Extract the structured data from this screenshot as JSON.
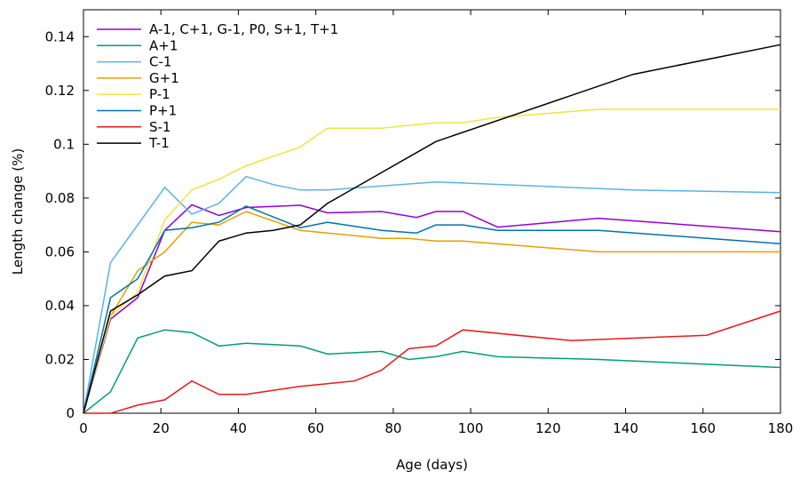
{
  "chart_data": {
    "type": "line",
    "xlabel": "Age (days)",
    "ylabel": "Length change (%)",
    "xlim": [
      0,
      180
    ],
    "ylim": [
      0,
      0.15
    ],
    "xticks": [
      0,
      20,
      40,
      60,
      80,
      100,
      120,
      140,
      160,
      180
    ],
    "yticks": [
      0,
      0.02,
      0.04,
      0.06,
      0.08,
      0.1,
      0.12,
      0.14
    ],
    "ytick_labels": [
      "0",
      "0.02",
      "0.04",
      "0.06",
      "0.08",
      "0.1",
      "0.12",
      "0.14"
    ],
    "grid": false,
    "legend_position": "top-left",
    "series": [
      {
        "name": "A-1, C+1, G-1, P0, S+1, T+1",
        "color": "#9400d3",
        "x": [
          0,
          7,
          14,
          21,
          28,
          35,
          42,
          56,
          63,
          77,
          86,
          91,
          98,
          107,
          133,
          180
        ],
        "y": [
          0,
          0.035,
          0.043,
          0.068,
          0.0775,
          0.0735,
          0.0765,
          0.0773,
          0.0745,
          0.075,
          0.0728,
          0.075,
          0.075,
          0.0692,
          0.0725,
          0.0675
        ]
      },
      {
        "name": "A+1",
        "color": "#009e73",
        "x": [
          0,
          7,
          14,
          21,
          28,
          35,
          42,
          56,
          63,
          77,
          84,
          91,
          98,
          107,
          133,
          180
        ],
        "y": [
          0,
          0.008,
          0.028,
          0.031,
          0.03,
          0.025,
          0.026,
          0.025,
          0.022,
          0.023,
          0.02,
          0.021,
          0.023,
          0.021,
          0.02,
          0.017
        ]
      },
      {
        "name": "C-1",
        "color": "#56b4e9",
        "x": [
          0,
          7,
          21,
          28,
          35,
          42,
          49,
          56,
          63,
          91,
          142,
          180
        ],
        "y": [
          0,
          0.056,
          0.084,
          0.074,
          0.078,
          0.088,
          0.085,
          0.083,
          0.083,
          0.086,
          0.083,
          0.082
        ],
        "note_x_include": true
      },
      {
        "name": "G+1",
        "color": "#e69f00",
        "x": [
          0,
          7,
          14,
          21,
          28,
          35,
          42,
          56,
          63,
          77,
          84,
          91,
          98,
          133,
          180
        ],
        "y": [
          0,
          0.036,
          0.053,
          0.06,
          0.071,
          0.07,
          0.075,
          0.068,
          0.067,
          0.065,
          0.065,
          0.064,
          0.064,
          0.06,
          0.06
        ]
      },
      {
        "name": "P-1",
        "color": "#f0e442",
        "x": [
          0,
          7,
          14,
          21,
          28,
          35,
          42,
          56,
          63,
          77,
          84,
          91,
          98,
          107,
          133,
          180
        ],
        "y": [
          0,
          0.036,
          0.045,
          0.072,
          0.083,
          0.087,
          0.092,
          0.099,
          0.106,
          0.106,
          0.107,
          0.108,
          0.108,
          0.11,
          0.113,
          0.113
        ]
      },
      {
        "name": "P+1",
        "color": "#0072b2",
        "x": [
          0,
          7,
          14,
          21,
          28,
          35,
          42,
          56,
          63,
          77,
          86,
          91,
          98,
          107,
          133,
          180
        ],
        "y": [
          0,
          0.043,
          0.05,
          0.068,
          0.069,
          0.071,
          0.077,
          0.069,
          0.071,
          0.068,
          0.067,
          0.07,
          0.07,
          0.068,
          0.068,
          0.063
        ]
      },
      {
        "name": "S-1",
        "color": "#e41a1c",
        "x": [
          0,
          7,
          14,
          21,
          28,
          35,
          42,
          56,
          63,
          70,
          77,
          84,
          91,
          98,
          126,
          161,
          180
        ],
        "y": [
          0,
          0,
          0.003,
          0.005,
          0.012,
          0.007,
          0.007,
          0.01,
          0.011,
          0.012,
          0.016,
          0.024,
          0.025,
          0.031,
          0.027,
          0.029,
          0.038
        ]
      },
      {
        "name": "T-1",
        "color": "#000000",
        "x": [
          0,
          7,
          14,
          21,
          28,
          35,
          42,
          49,
          56,
          63,
          91,
          142,
          180
        ],
        "y": [
          0,
          0.038,
          0.044,
          0.051,
          0.053,
          0.064,
          0.067,
          0.068,
          0.07,
          0.078,
          0.101,
          0.126,
          0.137
        ]
      }
    ]
  }
}
